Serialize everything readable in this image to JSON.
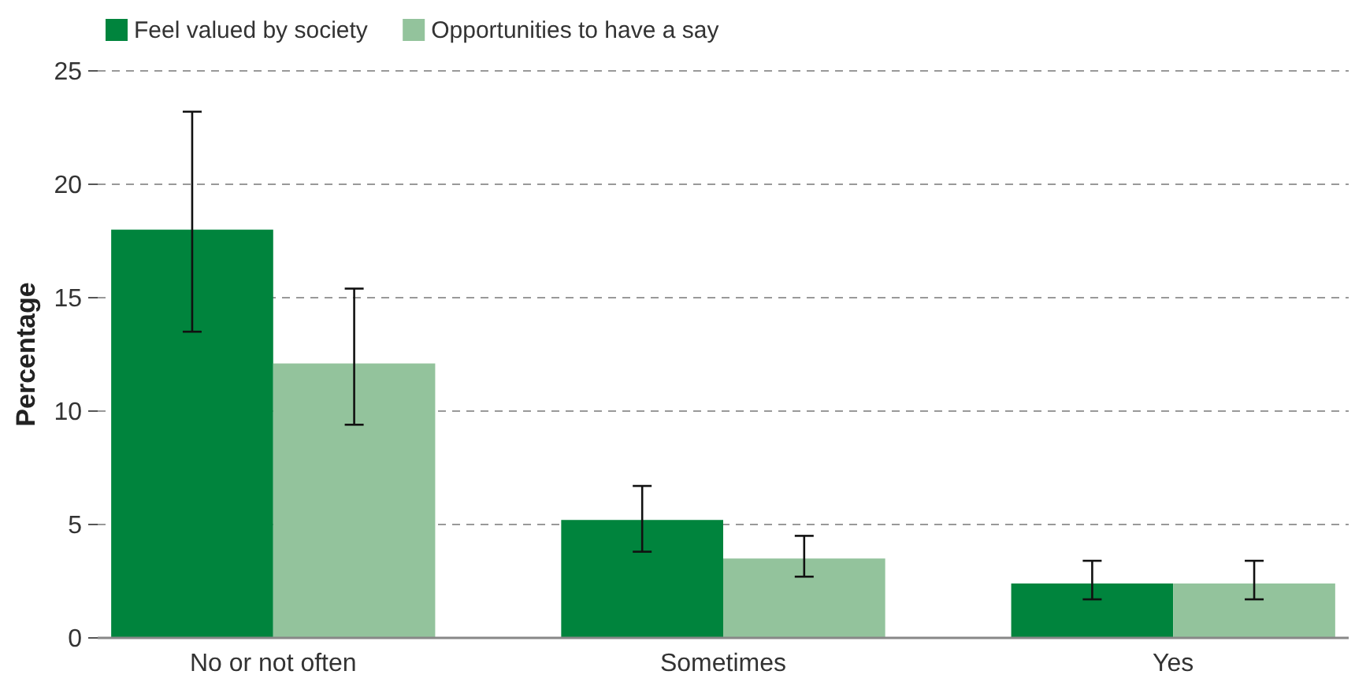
{
  "chart_data": {
    "type": "bar",
    "ylabel": "Percentage",
    "categories": [
      "No or not often",
      "Sometimes",
      "Yes"
    ],
    "series": [
      {
        "name": "Feel valued by society",
        "color": "#00843d",
        "values": [
          18,
          5.2,
          2.4
        ],
        "errors": [
          [
            13.5,
            23.2
          ],
          [
            3.8,
            6.7
          ],
          [
            1.7,
            3.4
          ]
        ]
      },
      {
        "name": "Opportunities to have a say",
        "color": "#93c39c",
        "values": [
          12.1,
          3.5,
          2.4
        ],
        "errors": [
          [
            9.4,
            15.4
          ],
          [
            2.7,
            4.5
          ],
          [
            1.7,
            3.4
          ]
        ]
      }
    ],
    "ylim": [
      0,
      25
    ],
    "yticks": [
      0,
      5,
      10,
      15,
      20,
      25
    ],
    "grid": "y",
    "legend": "top left"
  }
}
